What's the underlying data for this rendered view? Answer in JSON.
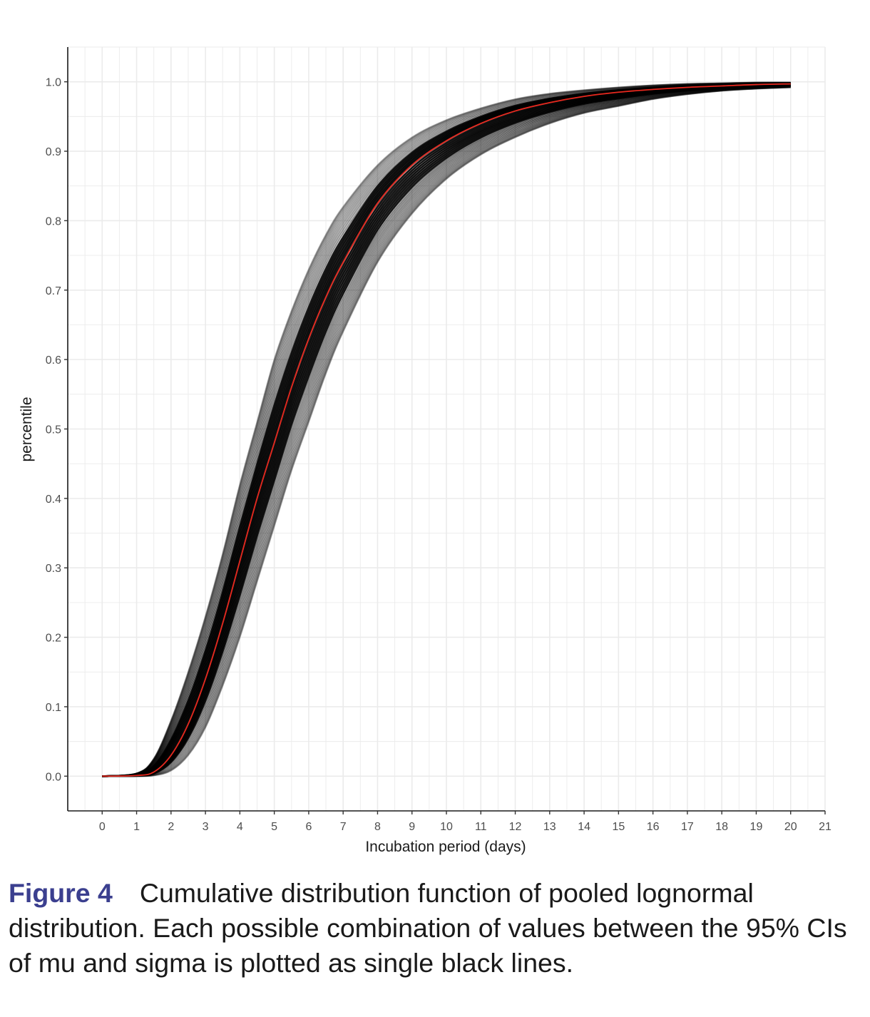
{
  "chart_data": {
    "type": "line",
    "xlabel": "Incubation period (days)",
    "ylabel": "percentile",
    "xlim": [
      -1,
      21
    ],
    "ylim": [
      -0.05,
      1.05
    ],
    "x_ticks": [
      0,
      1,
      2,
      3,
      4,
      5,
      6,
      7,
      8,
      9,
      10,
      11,
      12,
      13,
      14,
      15,
      16,
      17,
      18,
      19,
      20,
      21
    ],
    "y_ticks": [
      0.0,
      0.1,
      0.2,
      0.3,
      0.4,
      0.5,
      0.6,
      0.7,
      0.8,
      0.9,
      1.0
    ],
    "y_tick_labels": [
      "0.0",
      "0.1",
      "0.2",
      "0.3",
      "0.4",
      "0.5",
      "0.6",
      "0.7",
      "0.8",
      "0.9",
      "1.0"
    ],
    "grid": true,
    "x_range_plotted": [
      0,
      20
    ],
    "pooled_curve": {
      "color": "#e8281e",
      "x": [
        0,
        1,
        1.5,
        2,
        2.5,
        3,
        3.5,
        4,
        4.5,
        5,
        5.5,
        6,
        6.5,
        7,
        8,
        9,
        10,
        11,
        12,
        13,
        14,
        15,
        16,
        17,
        18,
        19,
        20
      ],
      "y": [
        0.0,
        0.001,
        0.006,
        0.03,
        0.075,
        0.14,
        0.22,
        0.31,
        0.4,
        0.48,
        0.56,
        0.63,
        0.69,
        0.74,
        0.825,
        0.88,
        0.915,
        0.94,
        0.958,
        0.97,
        0.979,
        0.985,
        0.989,
        0.992,
        0.994,
        0.996,
        0.997
      ]
    },
    "uncertainty_band": {
      "color": "#000000",
      "x": [
        0,
        1,
        1.5,
        2,
        2.5,
        3,
        3.5,
        4,
        4.5,
        5,
        5.5,
        6,
        6.5,
        7,
        8,
        9,
        10,
        11,
        12,
        13,
        14,
        15,
        16,
        17,
        18,
        19,
        20
      ],
      "lower": [
        0.0,
        0.0,
        0.001,
        0.008,
        0.03,
        0.07,
        0.13,
        0.2,
        0.28,
        0.36,
        0.44,
        0.51,
        0.58,
        0.64,
        0.74,
        0.81,
        0.86,
        0.895,
        0.92,
        0.94,
        0.955,
        0.965,
        0.975,
        0.982,
        0.987,
        0.99,
        0.992
      ],
      "upper": [
        0.0,
        0.004,
        0.025,
        0.08,
        0.15,
        0.23,
        0.32,
        0.42,
        0.51,
        0.6,
        0.67,
        0.73,
        0.78,
        0.82,
        0.88,
        0.92,
        0.945,
        0.962,
        0.975,
        0.983,
        0.988,
        0.992,
        0.995,
        0.997,
        0.998,
        0.999,
        0.999
      ]
    }
  },
  "caption": {
    "label": "Figure 4",
    "text": "Cumulative distribution function of pooled lognormal distribution. Each possible combination of values between the 95% CIs of mu and sigma is plotted as single black lines."
  }
}
